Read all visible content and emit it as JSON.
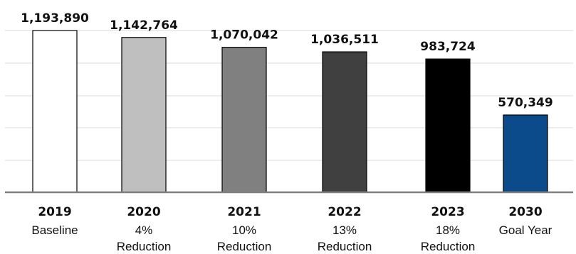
{
  "chart_data": {
    "type": "bar",
    "categories": [
      "2019",
      "2020",
      "2021",
      "2022",
      "2023",
      "2030"
    ],
    "sublabels": [
      [
        "Baseline"
      ],
      [
        "4%",
        "Reduction"
      ],
      [
        "10%",
        "Reduction"
      ],
      [
        "13%",
        "Reduction"
      ],
      [
        "18%",
        "Reduction"
      ],
      [
        "Goal Year"
      ]
    ],
    "values": [
      1193890,
      1142764,
      1070042,
      1036511,
      983724,
      570349
    ],
    "value_labels": [
      "1,193,890",
      "1,142,764",
      "1,070,042",
      "1,036,511",
      "983,724",
      "570,349"
    ],
    "colors": [
      "#ffffff",
      "#bfbfbf",
      "#808080",
      "#404040",
      "#000000",
      "#0b4a8b"
    ],
    "ylim": [
      0,
      1250000
    ],
    "gridlines": true,
    "title": "",
    "xlabel": "",
    "ylabel": ""
  }
}
